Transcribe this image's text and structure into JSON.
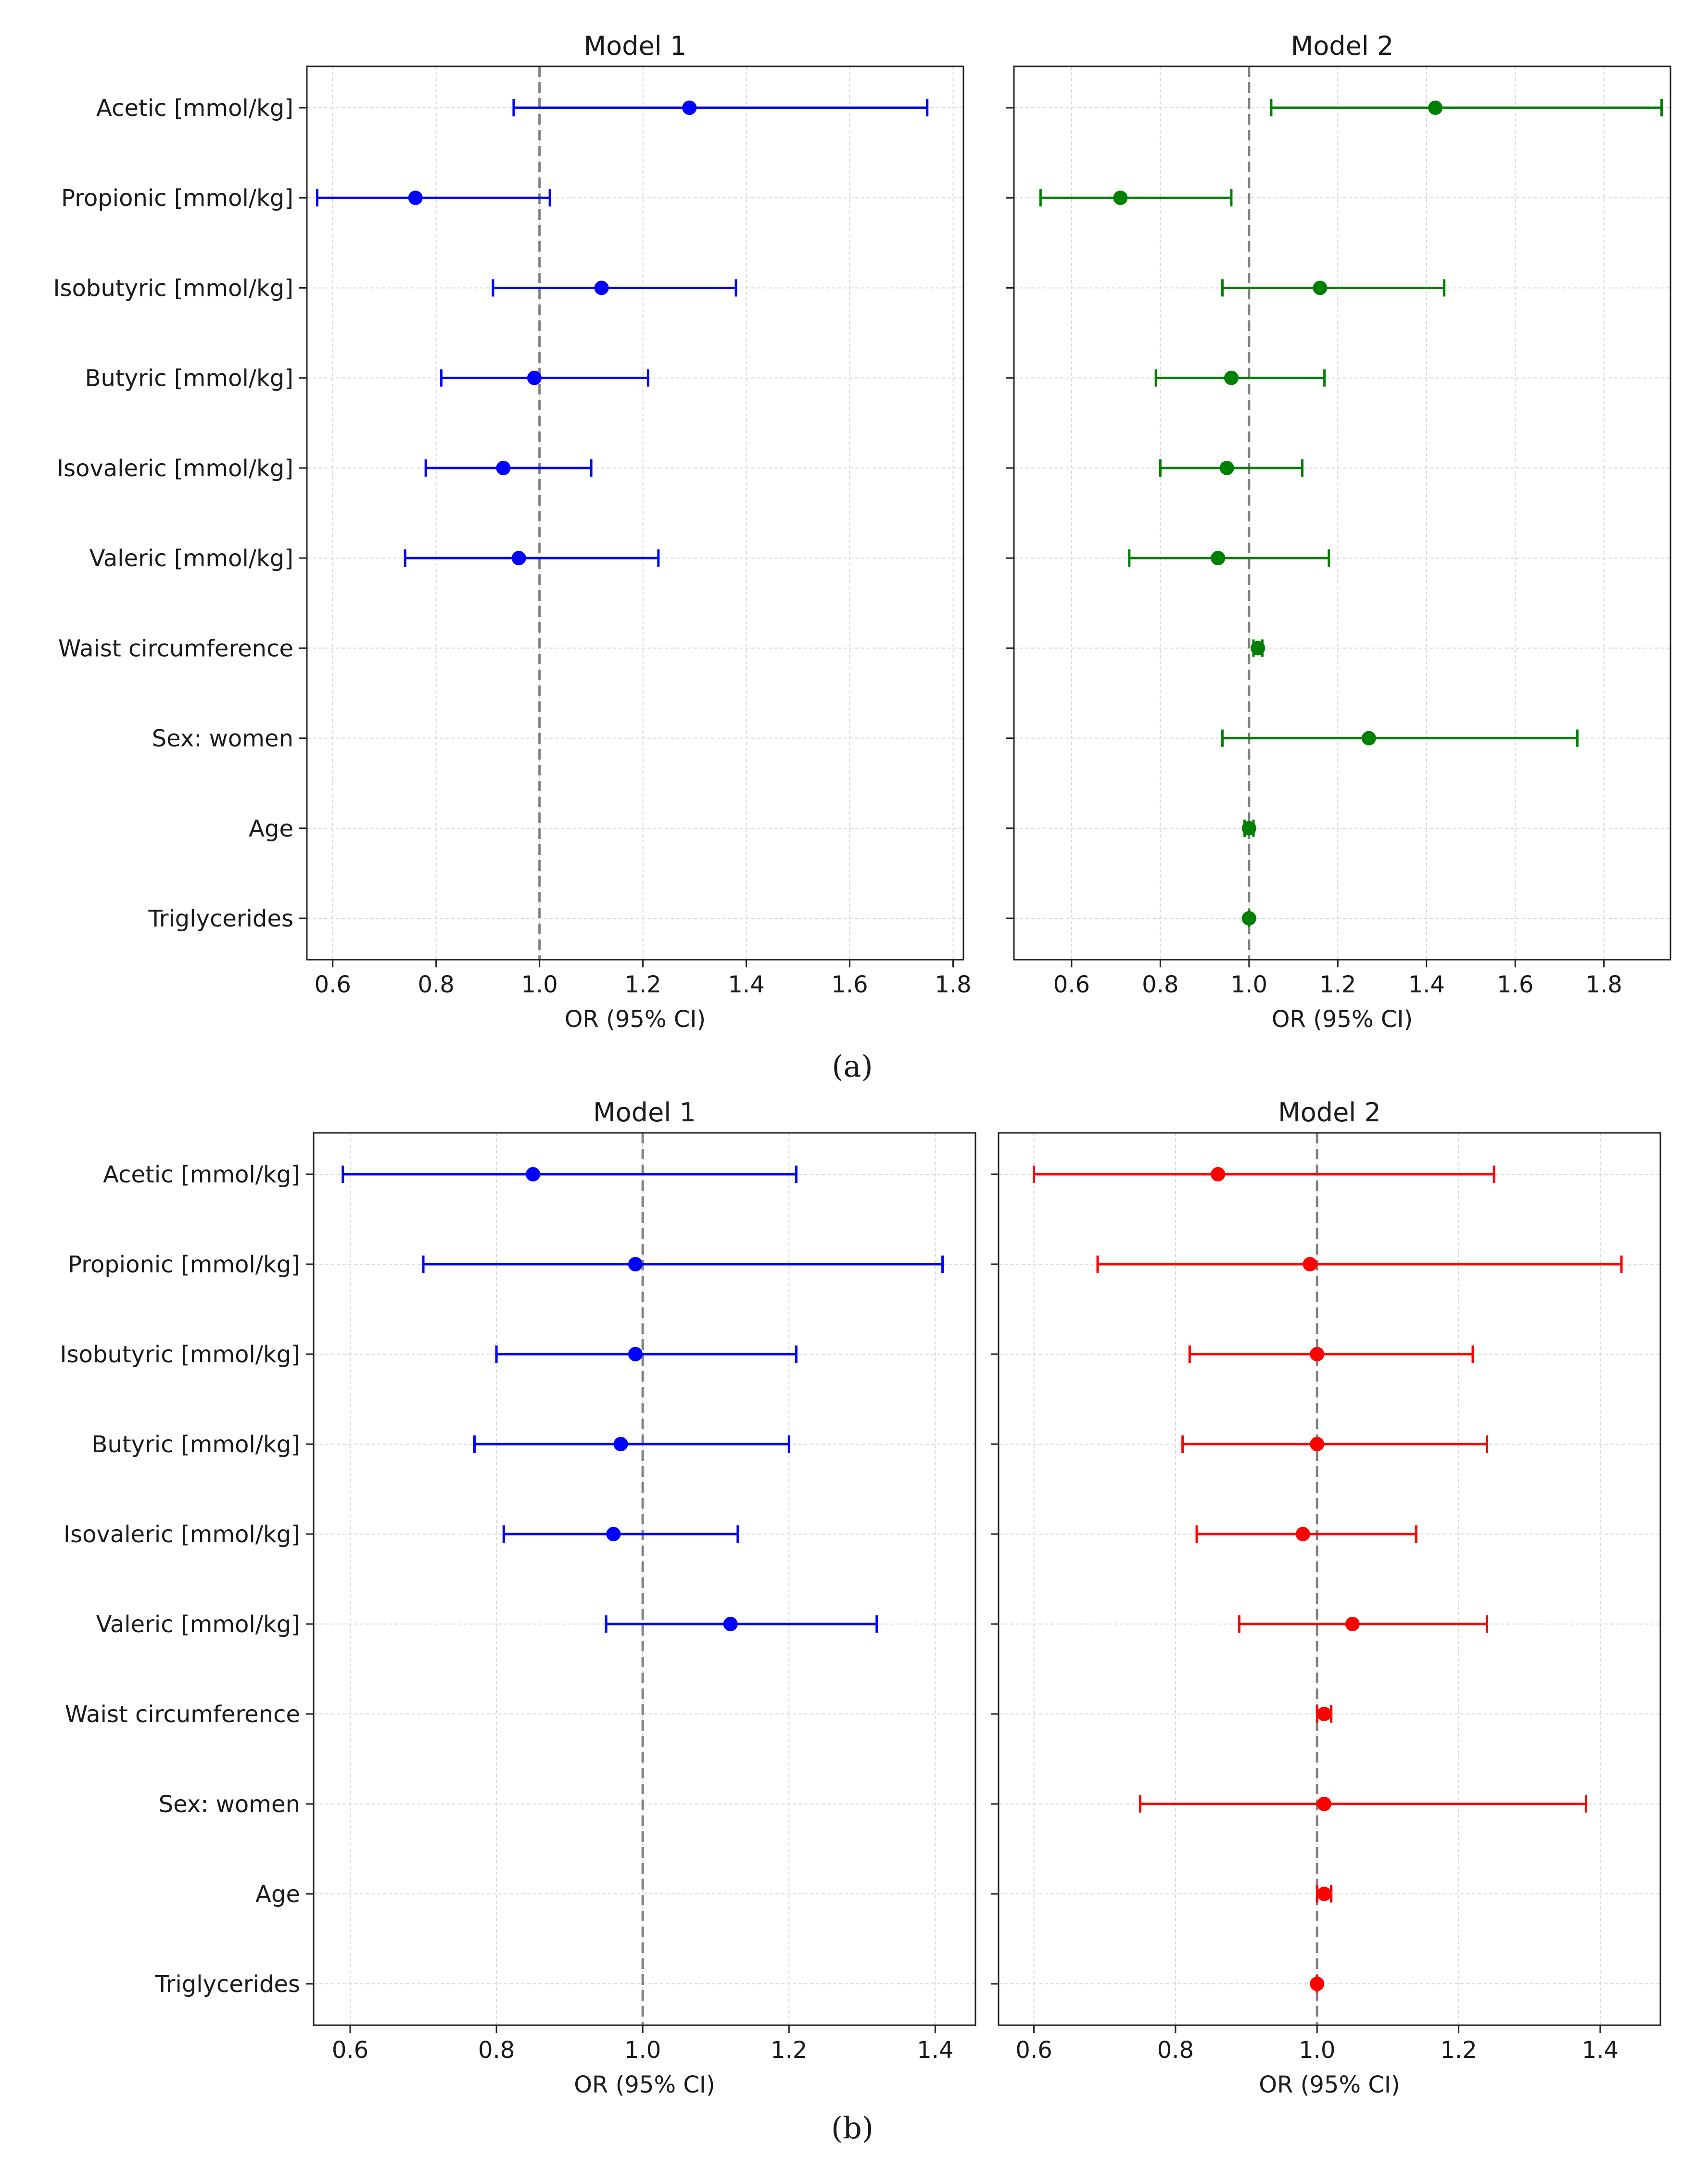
{
  "chart_data": [
    {
      "type": "forest",
      "figure_label": "(a)",
      "panels": [
        {
          "title": "Model 1",
          "xlabel": "OR (95% CI)",
          "xlim": [
            0.55,
            1.82
          ],
          "xticks": [
            0.6,
            0.8,
            1.0,
            1.2,
            1.4,
            1.6,
            1.8
          ],
          "reference_line": 1.0,
          "color": "#0000ff",
          "show_ylabels": true,
          "categories": [
            "Acetic [mmol/kg]",
            "Propionic [mmol/kg]",
            "Isobutyric [mmol/kg]",
            "Butyric [mmol/kg]",
            "Isovaleric [mmol/kg]",
            "Valeric [mmol/kg]",
            "Waist circumference",
            "Sex: women",
            "Age",
            "Triglycerides"
          ],
          "points": [
            {
              "label": "Acetic [mmol/kg]",
              "or": 1.29,
              "lower": 0.95,
              "upper": 1.75
            },
            {
              "label": "Propionic [mmol/kg]",
              "or": 0.76,
              "lower": 0.57,
              "upper": 1.02
            },
            {
              "label": "Isobutyric [mmol/kg]",
              "or": 1.12,
              "lower": 0.91,
              "upper": 1.38
            },
            {
              "label": "Butyric [mmol/kg]",
              "or": 0.99,
              "lower": 0.81,
              "upper": 1.21
            },
            {
              "label": "Isovaleric [mmol/kg]",
              "or": 0.93,
              "lower": 0.78,
              "upper": 1.1
            },
            {
              "label": "Valeric [mmol/kg]",
              "or": 0.96,
              "lower": 0.74,
              "upper": 1.23
            }
          ]
        },
        {
          "title": "Model 2",
          "xlabel": "OR (95% CI)",
          "xlim": [
            0.47,
            1.95
          ],
          "xticks": [
            0.6,
            0.8,
            1.0,
            1.2,
            1.4,
            1.6,
            1.8
          ],
          "reference_line": 1.0,
          "color": "#008000",
          "show_ylabels": false,
          "categories": [
            "Acetic [mmol/kg]",
            "Propionic [mmol/kg]",
            "Isobutyric [mmol/kg]",
            "Butyric [mmol/kg]",
            "Isovaleric [mmol/kg]",
            "Valeric [mmol/kg]",
            "Waist circumference",
            "Sex: women",
            "Age",
            "Triglycerides"
          ],
          "points": [
            {
              "label": "Acetic [mmol/kg]",
              "or": 1.42,
              "lower": 1.05,
              "upper": 1.93
            },
            {
              "label": "Propionic [mmol/kg]",
              "or": 0.71,
              "lower": 0.53,
              "upper": 0.96
            },
            {
              "label": "Isobutyric [mmol/kg]",
              "or": 1.16,
              "lower": 0.94,
              "upper": 1.44
            },
            {
              "label": "Butyric [mmol/kg]",
              "or": 0.96,
              "lower": 0.79,
              "upper": 1.17
            },
            {
              "label": "Isovaleric [mmol/kg]",
              "or": 0.95,
              "lower": 0.8,
              "upper": 1.12
            },
            {
              "label": "Valeric [mmol/kg]",
              "or": 0.93,
              "lower": 0.73,
              "upper": 1.18
            },
            {
              "label": "Waist circumference",
              "or": 1.02,
              "lower": 1.01,
              "upper": 1.03
            },
            {
              "label": "Sex: women",
              "or": 1.27,
              "lower": 0.94,
              "upper": 1.74
            },
            {
              "label": "Age",
              "or": 1.0,
              "lower": 0.99,
              "upper": 1.01
            },
            {
              "label": "Triglycerides",
              "or": 1.0,
              "lower": 1.0,
              "upper": 1.0
            }
          ]
        }
      ]
    },
    {
      "type": "forest",
      "figure_label": "(b)",
      "panels": [
        {
          "title": "Model 1",
          "xlabel": "OR (95% CI)",
          "xlim": [
            0.55,
            1.455
          ],
          "xticks": [
            0.6,
            0.8,
            1.0,
            1.2,
            1.4
          ],
          "reference_line": 1.0,
          "color": "#0000ff",
          "show_ylabels": true,
          "categories": [
            "Acetic [mmol/kg]",
            "Propionic [mmol/kg]",
            "Isobutyric [mmol/kg]",
            "Butyric [mmol/kg]",
            "Isovaleric [mmol/kg]",
            "Valeric [mmol/kg]",
            "Waist circumference",
            "Sex: women",
            "Age",
            "Triglycerides"
          ],
          "points": [
            {
              "label": "Acetic [mmol/kg]",
              "or": 0.85,
              "lower": 0.59,
              "upper": 1.21
            },
            {
              "label": "Propionic [mmol/kg]",
              "or": 0.99,
              "lower": 0.7,
              "upper": 1.41
            },
            {
              "label": "Isobutyric [mmol/kg]",
              "or": 0.99,
              "lower": 0.8,
              "upper": 1.21
            },
            {
              "label": "Butyric [mmol/kg]",
              "or": 0.97,
              "lower": 0.77,
              "upper": 1.2
            },
            {
              "label": "Isovaleric [mmol/kg]",
              "or": 0.96,
              "lower": 0.81,
              "upper": 1.13
            },
            {
              "label": "Valeric [mmol/kg]",
              "or": 1.12,
              "lower": 0.95,
              "upper": 1.32
            }
          ]
        },
        {
          "title": "Model 2",
          "xlabel": "OR (95% CI)",
          "xlim": [
            0.55,
            1.485
          ],
          "xticks": [
            0.6,
            0.8,
            1.0,
            1.2,
            1.4
          ],
          "reference_line": 1.0,
          "color": "#ff0000",
          "show_ylabels": false,
          "categories": [
            "Acetic [mmol/kg]",
            "Propionic [mmol/kg]",
            "Isobutyric [mmol/kg]",
            "Butyric [mmol/kg]",
            "Isovaleric [mmol/kg]",
            "Valeric [mmol/kg]",
            "Waist circumference",
            "Sex: women",
            "Age",
            "Triglycerides"
          ],
          "points": [
            {
              "label": "Acetic [mmol/kg]",
              "or": 0.86,
              "lower": 0.6,
              "upper": 1.25
            },
            {
              "label": "Propionic [mmol/kg]",
              "or": 0.99,
              "lower": 0.69,
              "upper": 1.43
            },
            {
              "label": "Isobutyric [mmol/kg]",
              "or": 1.0,
              "lower": 0.82,
              "upper": 1.22
            },
            {
              "label": "Butyric [mmol/kg]",
              "or": 1.0,
              "lower": 0.81,
              "upper": 1.24
            },
            {
              "label": "Isovaleric [mmol/kg]",
              "or": 0.98,
              "lower": 0.83,
              "upper": 1.14
            },
            {
              "label": "Valeric [mmol/kg]",
              "or": 1.05,
              "lower": 0.89,
              "upper": 1.24
            },
            {
              "label": "Waist circumference",
              "or": 1.01,
              "lower": 1.0,
              "upper": 1.02
            },
            {
              "label": "Sex: women",
              "or": 1.01,
              "lower": 0.75,
              "upper": 1.38
            },
            {
              "label": "Age",
              "or": 1.01,
              "lower": 1.0,
              "upper": 1.02
            },
            {
              "label": "Triglycerides",
              "or": 1.0,
              "lower": 1.0,
              "upper": 1.0
            }
          ]
        }
      ]
    }
  ]
}
